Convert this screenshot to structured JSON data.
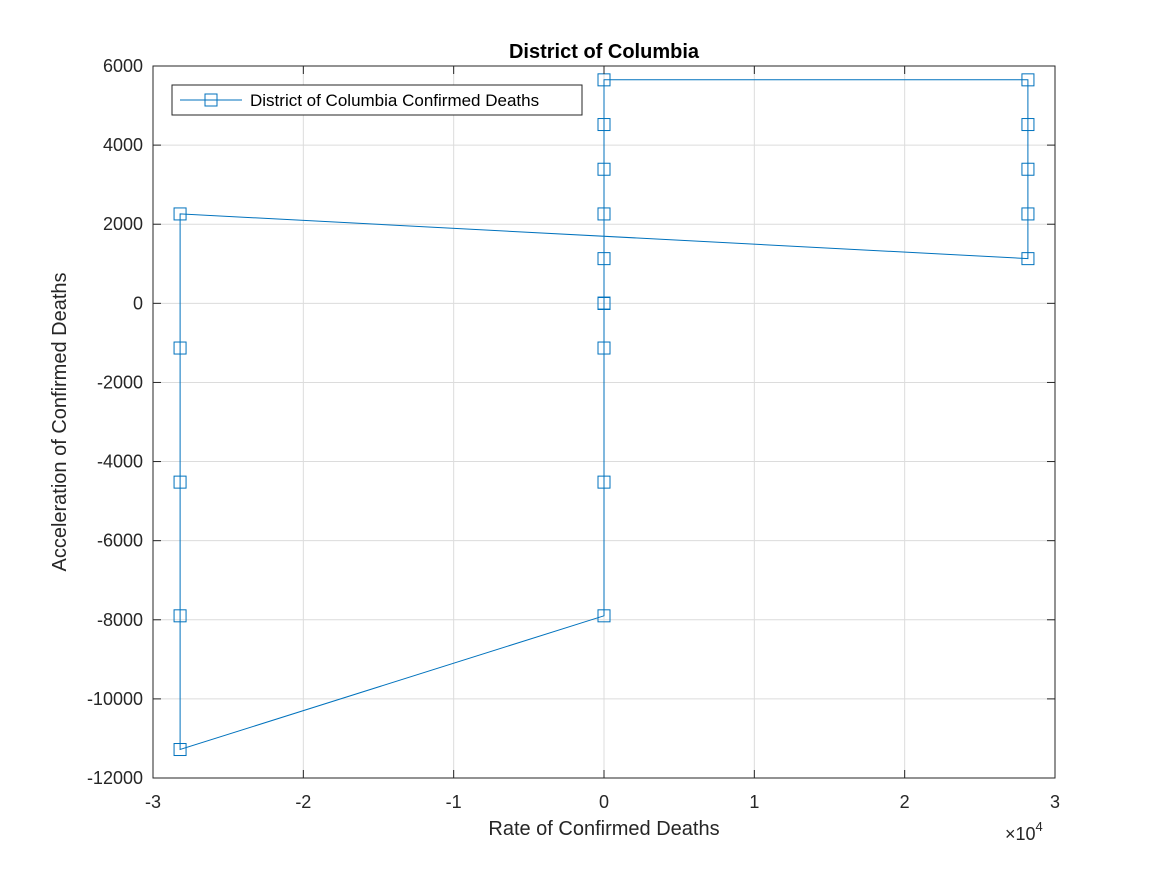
{
  "chart_data": {
    "type": "line",
    "title": "District of Columbia",
    "xlabel": "Rate of Confirmed Deaths",
    "ylabel": "Acceleration of Confirmed Deaths",
    "x_exponent_label": "×10",
    "x_exponent_power": "4",
    "xlim": [
      -30000,
      30000
    ],
    "ylim": [
      -12000,
      6000
    ],
    "x_ticks": [
      -30000,
      -20000,
      -10000,
      0,
      10000,
      20000,
      30000
    ],
    "x_tick_labels": [
      "-3",
      "-2",
      "-1",
      "0",
      "1",
      "2",
      "3"
    ],
    "y_ticks": [
      -12000,
      -10000,
      -8000,
      -6000,
      -4000,
      -2000,
      0,
      2000,
      4000,
      6000
    ],
    "y_tick_labels": [
      "-12000",
      "-10000",
      "-8000",
      "-6000",
      "-4000",
      "-2000",
      "0",
      "2000",
      "4000",
      "6000"
    ],
    "grid": true,
    "legend_position": "top-left",
    "marker": "square",
    "line_color": "#0072BD",
    "series": [
      {
        "name": "District of Columbia Confirmed Deaths",
        "x": [
          0,
          0,
          0,
          0,
          0,
          0,
          0,
          28200,
          28200,
          28200,
          28200,
          28200,
          -28200,
          -28200,
          -28200,
          -28200,
          -28200,
          0,
          0,
          0,
          0,
          0,
          0
        ],
        "y": [
          0,
          0,
          1130,
          2260,
          3390,
          4520,
          5650,
          5650,
          4520,
          3390,
          2260,
          1130,
          2260,
          -1130,
          -4520,
          -7900,
          -11280,
          -7900,
          -4520,
          -1130,
          0,
          0,
          0
        ]
      }
    ]
  }
}
